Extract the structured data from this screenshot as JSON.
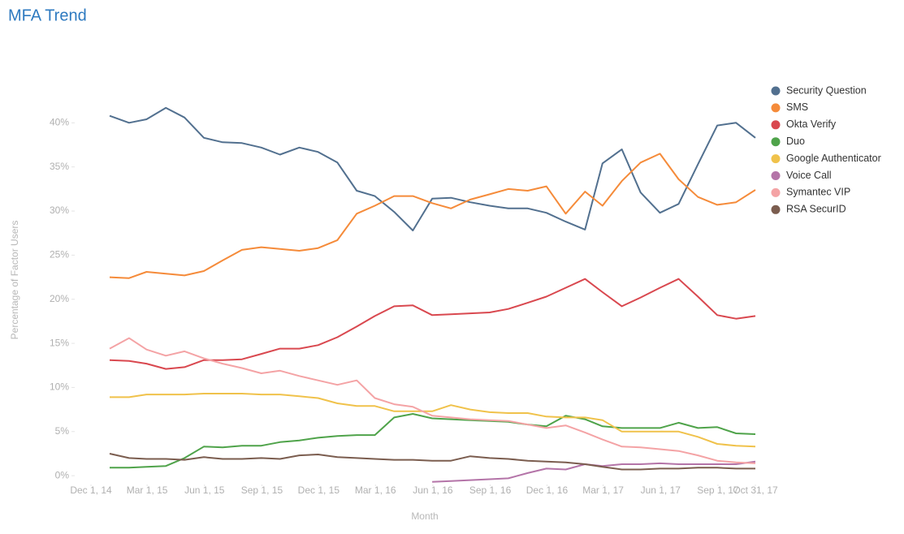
{
  "chart_data": {
    "type": "line",
    "title": "MFA Trend",
    "x_label": "Month",
    "y_label": "Percentage of Factor Users",
    "legend_position": "right",
    "x": [
      "2014-12-31",
      "2015-01-31",
      "2015-02-28",
      "2015-03-31",
      "2015-04-30",
      "2015-05-31",
      "2015-06-30",
      "2015-07-31",
      "2015-08-31",
      "2015-09-30",
      "2015-10-31",
      "2015-11-30",
      "2015-12-31",
      "2016-01-31",
      "2016-02-29",
      "2016-03-31",
      "2016-04-30",
      "2016-05-31",
      "2016-06-30",
      "2016-07-31",
      "2016-08-31",
      "2016-09-30",
      "2016-10-31",
      "2016-11-30",
      "2016-12-31",
      "2017-01-31",
      "2017-02-28",
      "2017-03-31",
      "2017-04-30",
      "2017-05-31",
      "2017-06-30",
      "2017-07-31",
      "2017-08-31",
      "2017-09-30",
      "2017-10-31"
    ],
    "xlim": [
      "2014-12-01",
      "2017-10-31"
    ],
    "xticks": [
      {
        "value": "2014-12-01",
        "label": "Dec 1, 14"
      },
      {
        "value": "2015-03-01",
        "label": "Mar 1, 15"
      },
      {
        "value": "2015-06-01",
        "label": "Jun 1, 15"
      },
      {
        "value": "2015-09-01",
        "label": "Sep 1, 15"
      },
      {
        "value": "2015-12-01",
        "label": "Dec 1, 15"
      },
      {
        "value": "2016-03-01",
        "label": "Mar 1, 16"
      },
      {
        "value": "2016-06-01",
        "label": "Jun 1, 16"
      },
      {
        "value": "2016-09-01",
        "label": "Sep 1, 16"
      },
      {
        "value": "2016-12-01",
        "label": "Dec 1, 16"
      },
      {
        "value": "2017-03-01",
        "label": "Mar 1, 17"
      },
      {
        "value": "2017-06-01",
        "label": "Jun 1, 17"
      },
      {
        "value": "2017-09-01",
        "label": "Sep 1, 17"
      },
      {
        "value": "2017-10-31",
        "label": "Oct 31, 17"
      }
    ],
    "ylim": [
      -1,
      45
    ],
    "yticks": [
      {
        "value": 0,
        "label": "0%"
      },
      {
        "value": 5,
        "label": "5%"
      },
      {
        "value": 10,
        "label": "10%"
      },
      {
        "value": 15,
        "label": "15%"
      },
      {
        "value": 20,
        "label": "20%"
      },
      {
        "value": 25,
        "label": "25%"
      },
      {
        "value": 30,
        "label": "30%"
      },
      {
        "value": 35,
        "label": "35%"
      },
      {
        "value": 40,
        "label": "40%"
      }
    ],
    "series": [
      {
        "name": "Security Question",
        "color": "#52708f",
        "values": [
          40.8,
          40.0,
          40.4,
          41.7,
          40.6,
          38.3,
          37.8,
          37.7,
          37.2,
          36.4,
          37.2,
          36.7,
          35.5,
          32.3,
          31.7,
          29.9,
          27.8,
          31.4,
          31.5,
          31.0,
          30.6,
          30.3,
          30.3,
          29.8,
          28.8,
          27.9,
          35.4,
          37.0,
          32.1,
          29.8,
          30.8,
          35.3,
          39.7,
          40.0,
          38.3
        ]
      },
      {
        "name": "SMS",
        "color": "#f58b3a",
        "values": [
          22.5,
          22.4,
          23.1,
          22.9,
          22.7,
          23.2,
          24.4,
          25.6,
          25.9,
          25.7,
          25.5,
          25.8,
          26.7,
          29.7,
          30.6,
          31.7,
          31.7,
          30.9,
          30.3,
          31.3,
          31.9,
          32.5,
          32.3,
          32.8,
          29.7,
          32.2,
          30.6,
          33.4,
          35.5,
          36.5,
          33.6,
          31.6,
          30.7,
          31.0,
          32.4
        ]
      },
      {
        "name": "Okta Verify",
        "color": "#d9484f",
        "values": [
          13.1,
          13.0,
          12.7,
          12.1,
          12.3,
          13.1,
          13.1,
          13.2,
          13.8,
          14.4,
          14.4,
          14.8,
          15.7,
          16.9,
          18.1,
          19.2,
          19.3,
          18.2,
          18.3,
          18.4,
          18.5,
          18.9,
          19.6,
          20.3,
          21.3,
          22.3,
          20.8,
          19.2,
          20.2,
          21.3,
          22.3,
          20.3,
          18.2,
          17.8,
          18.1
        ]
      },
      {
        "name": "Duo",
        "color": "#4fa34a",
        "values": [
          0.9,
          0.9,
          1.0,
          1.1,
          2.0,
          3.3,
          3.2,
          3.4,
          3.4,
          3.8,
          4.0,
          4.3,
          4.5,
          4.6,
          4.6,
          6.6,
          7.0,
          6.5,
          6.4,
          6.3,
          6.2,
          6.1,
          5.8,
          5.6,
          6.8,
          6.4,
          5.6,
          5.4,
          5.4,
          5.4,
          6.0,
          5.4,
          5.5,
          4.8,
          4.7
        ]
      },
      {
        "name": "Google Authenticator",
        "color": "#f0c24b",
        "values": [
          8.9,
          8.9,
          9.2,
          9.2,
          9.2,
          9.3,
          9.3,
          9.3,
          9.2,
          9.2,
          9.0,
          8.8,
          8.2,
          7.9,
          7.9,
          7.3,
          7.3,
          7.3,
          8.0,
          7.5,
          7.2,
          7.1,
          7.1,
          6.7,
          6.6,
          6.6,
          6.3,
          5.0,
          5.0,
          5.0,
          5.0,
          4.4,
          3.6,
          3.4,
          3.3
        ]
      },
      {
        "name": "Voice Call",
        "color": "#b474a8",
        "values": [
          null,
          null,
          null,
          null,
          null,
          null,
          null,
          null,
          null,
          null,
          null,
          null,
          null,
          null,
          null,
          null,
          null,
          -0.7,
          -0.6,
          -0.5,
          -0.4,
          -0.3,
          0.3,
          0.8,
          0.7,
          1.3,
          1.1,
          1.3,
          1.3,
          1.4,
          1.3,
          1.3,
          1.3,
          1.3,
          1.6
        ]
      },
      {
        "name": "Symantec VIP",
        "color": "#f4a3a5",
        "values": [
          14.4,
          15.6,
          14.3,
          13.6,
          14.1,
          13.3,
          12.7,
          12.2,
          11.6,
          11.9,
          11.3,
          10.8,
          10.3,
          10.8,
          8.8,
          8.1,
          7.8,
          6.8,
          6.6,
          6.4,
          6.3,
          6.2,
          5.8,
          5.4,
          5.7,
          4.9,
          4.1,
          3.3,
          3.2,
          3.0,
          2.8,
          2.3,
          1.7,
          1.5,
          1.4
        ]
      },
      {
        "name": "RSA SecurID",
        "color": "#7b5d4f",
        "values": [
          2.5,
          2.0,
          1.9,
          1.9,
          1.8,
          2.1,
          1.9,
          1.9,
          2.0,
          1.9,
          2.3,
          2.4,
          2.1,
          2.0,
          1.9,
          1.8,
          1.8,
          1.7,
          1.7,
          2.2,
          2.0,
          1.9,
          1.7,
          1.6,
          1.5,
          1.3,
          1.0,
          0.7,
          0.7,
          0.8,
          0.8,
          0.9,
          0.9,
          0.8,
          0.8
        ]
      }
    ]
  }
}
